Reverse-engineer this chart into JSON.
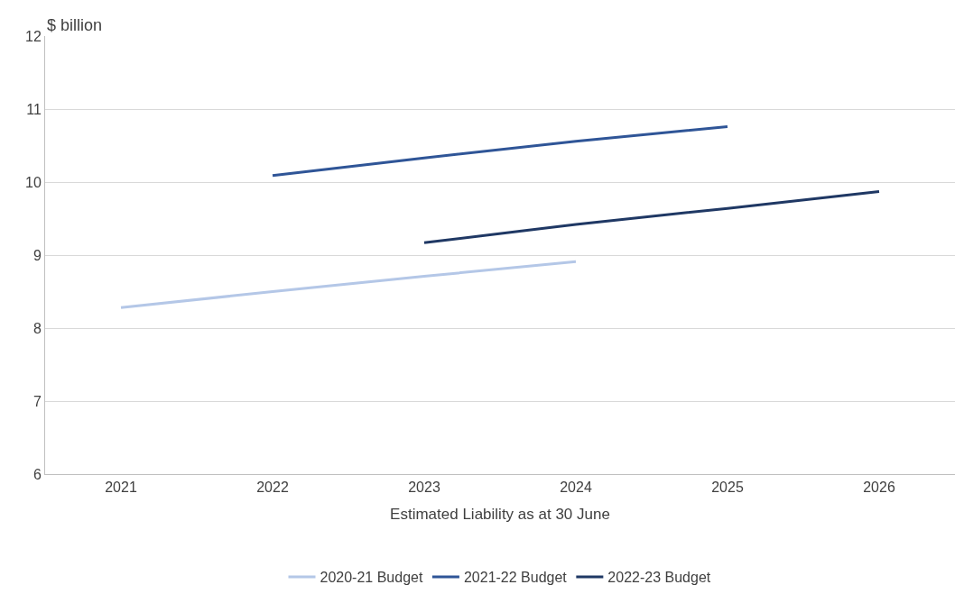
{
  "chart_data": {
    "type": "line",
    "xlabel": "Estimated Liability as at 30 June",
    "ylabel": "$ billion",
    "categories": [
      "2021",
      "2022",
      "2023",
      "2024",
      "2025",
      "2026"
    ],
    "series": [
      {
        "name": "2020-21 Budget",
        "color": "#b4c7e7",
        "values": [
          8.28,
          8.5,
          8.71,
          8.91,
          null,
          null
        ]
      },
      {
        "name": "2021-22 Budget",
        "color": "#2f5597",
        "values": [
          null,
          10.09,
          10.33,
          10.56,
          10.76,
          null
        ]
      },
      {
        "name": "2022-23 Budget",
        "color": "#1f3864",
        "values": [
          null,
          null,
          9.17,
          9.42,
          9.64,
          9.87
        ]
      }
    ],
    "ylim": [
      6,
      12
    ],
    "yticks": [
      6,
      7,
      8,
      9,
      10,
      11,
      12
    ],
    "grid": "y",
    "legend": "bottom",
    "marker": "none",
    "line_style": "solid"
  }
}
